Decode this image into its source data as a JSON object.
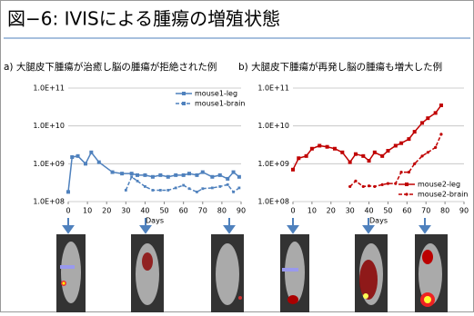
{
  "title": "図−6: IVISによる腫瘍の増殖状態",
  "chart_data": [
    {
      "type": "line",
      "subtitle": "a) 大腿皮下腫瘍が治癒し脳の腫瘍が拒絶された例",
      "xlabel": "Days",
      "xlim": [
        0,
        90
      ],
      "xticks": [
        0,
        10,
        20,
        30,
        40,
        50,
        60,
        70,
        80,
        90
      ],
      "ylim": [
        100000000,
        100000000000
      ],
      "log_y": true,
      "yticks": [
        {
          "value": 100000000,
          "label": "1.0E+08"
        },
        {
          "value": 1000000000,
          "label": "1.0E+09"
        },
        {
          "value": 10000000000,
          "label": "1.0E+10"
        },
        {
          "value": 100000000000,
          "label": "1.0E+11"
        }
      ],
      "legend": "upper right",
      "series": [
        {
          "name": "mouse1-leg",
          "color": "#4f81bd",
          "line_style": "solid",
          "marker": "square",
          "x": [
            0,
            2,
            5,
            9,
            12,
            16,
            23,
            28,
            33,
            36,
            40,
            44,
            48,
            52,
            56,
            60,
            63,
            67,
            70,
            75,
            79,
            83,
            86,
            89
          ],
          "values": [
            180000000,
            1500000000,
            1600000000,
            1000000000,
            2000000000,
            1100000000,
            600000000,
            550000000,
            550000000,
            500000000,
            500000000,
            450000000,
            500000000,
            450000000,
            500000000,
            500000000,
            550000000,
            500000000,
            600000000,
            450000000,
            500000000,
            400000000,
            600000000,
            450000000
          ]
        },
        {
          "name": "mouse1-brain",
          "color": "#4f81bd",
          "line_style": "dashed",
          "marker": "square",
          "x": [
            30,
            33,
            36,
            40,
            44,
            48,
            52,
            56,
            60,
            63,
            67,
            70,
            75,
            79,
            83,
            86,
            89
          ],
          "values": [
            200000000,
            450000000,
            350000000,
            250000000,
            200000000,
            200000000,
            200000000,
            230000000,
            270000000,
            220000000,
            180000000,
            220000000,
            230000000,
            250000000,
            280000000,
            180000000,
            230000000
          ]
        }
      ]
    },
    {
      "type": "line",
      "subtitle": "b) 大腿皮下腫瘍が再発し脳の腫瘍も増大した例",
      "xlabel": "Days",
      "xlim": [
        0,
        90
      ],
      "xticks": [
        0,
        10,
        20,
        30,
        40,
        50,
        60,
        70,
        80,
        90
      ],
      "ylim": [
        100000000,
        100000000000
      ],
      "log_y": true,
      "yticks": [
        {
          "value": 100000000,
          "label": "1.0E+08"
        },
        {
          "value": 1000000000,
          "label": "1.0E+09"
        },
        {
          "value": 10000000000,
          "label": "1.0E+10"
        },
        {
          "value": 100000000000,
          "label": "1.0E+11"
        }
      ],
      "legend": "lower right",
      "series": [
        {
          "name": "mouse2-leg",
          "color": "#c00000",
          "line_style": "solid",
          "marker": "square",
          "x": [
            0,
            3,
            7,
            10,
            14,
            18,
            22,
            26,
            30,
            33,
            37,
            40,
            43,
            47,
            50,
            54,
            57,
            61,
            64,
            68,
            71,
            75,
            78
          ],
          "values": [
            700000000,
            1400000000,
            1600000000,
            2500000000,
            3000000000,
            2800000000,
            2500000000,
            2000000000,
            1100000000,
            1800000000,
            1600000000,
            1200000000,
            2000000000,
            1600000000,
            2200000000,
            3000000000,
            3500000000,
            4500000000,
            7000000000,
            12000000000,
            16000000000,
            22000000000,
            35000000000
          ]
        },
        {
          "name": "mouse2-brain",
          "color": "#c00000",
          "line_style": "dashed",
          "marker": "circle",
          "x": [
            30,
            33,
            37,
            40,
            43,
            47,
            50,
            54,
            57,
            61,
            64,
            68,
            71,
            75,
            78
          ],
          "values": [
            250000000,
            350000000,
            250000000,
            260000000,
            250000000,
            280000000,
            300000000,
            300000000,
            600000000,
            600000000,
            1000000000,
            1600000000,
            2000000000,
            2700000000,
            6000000000
          ]
        }
      ]
    }
  ]
}
